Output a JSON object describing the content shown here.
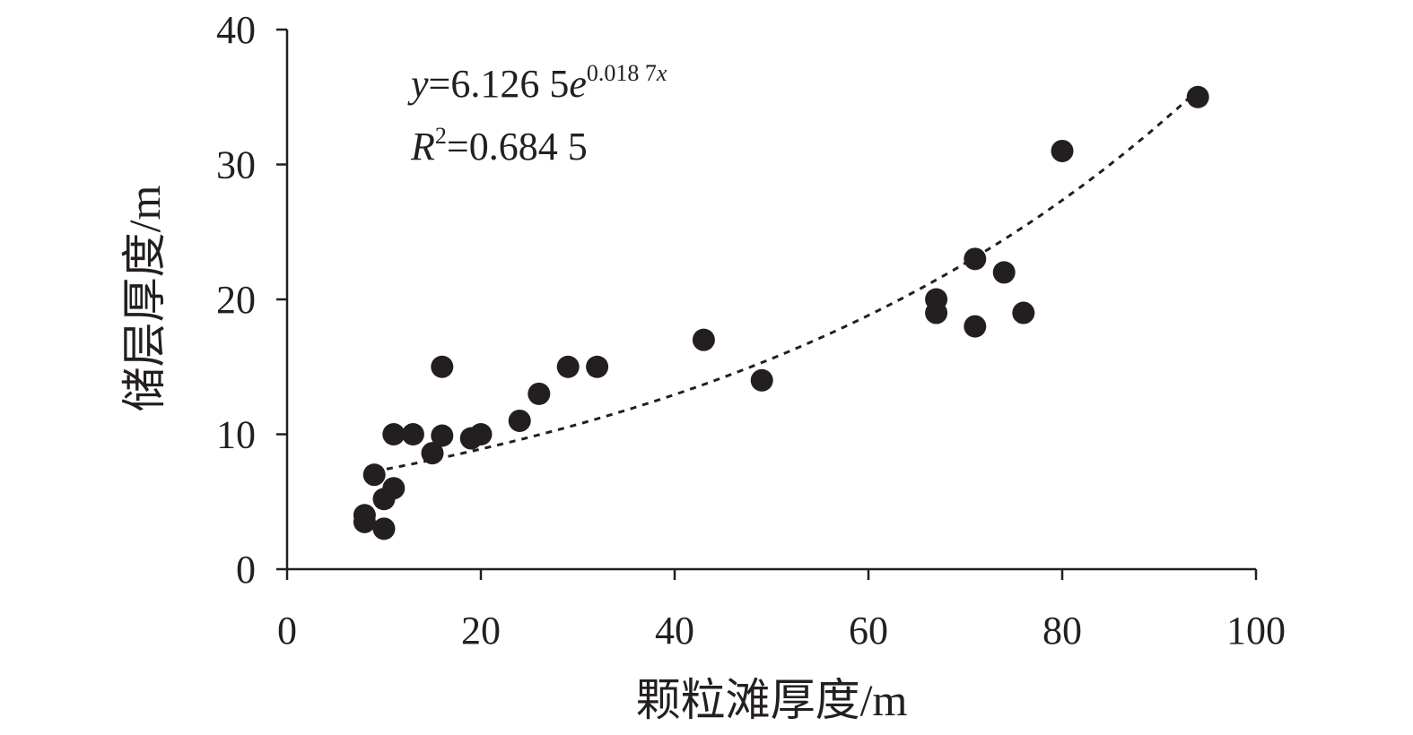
{
  "chart_data": {
    "type": "scatter",
    "xlabel": "颗粒滩厚度/m",
    "ylabel": "储层厚度/m",
    "xlim": [
      0,
      100
    ],
    "ylim": [
      0,
      40
    ],
    "xticks": [
      "0",
      "20",
      "40",
      "60",
      "80",
      "100"
    ],
    "yticks": [
      "0",
      "10",
      "20",
      "30",
      "40"
    ],
    "grid": false,
    "points": [
      {
        "x": 8,
        "y": 3.5
      },
      {
        "x": 8,
        "y": 4
      },
      {
        "x": 9,
        "y": 7
      },
      {
        "x": 10,
        "y": 3
      },
      {
        "x": 10,
        "y": 5.2
      },
      {
        "x": 11,
        "y": 6
      },
      {
        "x": 11,
        "y": 10
      },
      {
        "x": 13,
        "y": 10
      },
      {
        "x": 15,
        "y": 8.6
      },
      {
        "x": 16,
        "y": 9.9
      },
      {
        "x": 16,
        "y": 15
      },
      {
        "x": 19,
        "y": 9.7
      },
      {
        "x": 20,
        "y": 10
      },
      {
        "x": 24,
        "y": 11
      },
      {
        "x": 26,
        "y": 13
      },
      {
        "x": 29,
        "y": 15
      },
      {
        "x": 32,
        "y": 15
      },
      {
        "x": 43,
        "y": 17
      },
      {
        "x": 49,
        "y": 14
      },
      {
        "x": 67,
        "y": 19
      },
      {
        "x": 67,
        "y": 20
      },
      {
        "x": 71,
        "y": 23
      },
      {
        "x": 71,
        "y": 18
      },
      {
        "x": 74,
        "y": 22
      },
      {
        "x": 76,
        "y": 19
      },
      {
        "x": 80,
        "y": 31
      },
      {
        "x": 94,
        "y": 35
      }
    ],
    "trendline": {
      "type": "exponential",
      "a": 6.1265,
      "b": 0.0187,
      "x_range": [
        9,
        94
      ],
      "style": "dashed"
    },
    "annotations": {
      "equation": {
        "y_var": "y",
        "eq": "=6.126 5",
        "e": "e",
        "exp_num": "0.018 7",
        "exp_var": "x"
      },
      "r2": {
        "R": "R",
        "sup": "2",
        "value": "=0.684 5"
      }
    },
    "colors": {
      "marker": "#231f20",
      "axis": "#231f20",
      "text": "#231f20"
    }
  }
}
